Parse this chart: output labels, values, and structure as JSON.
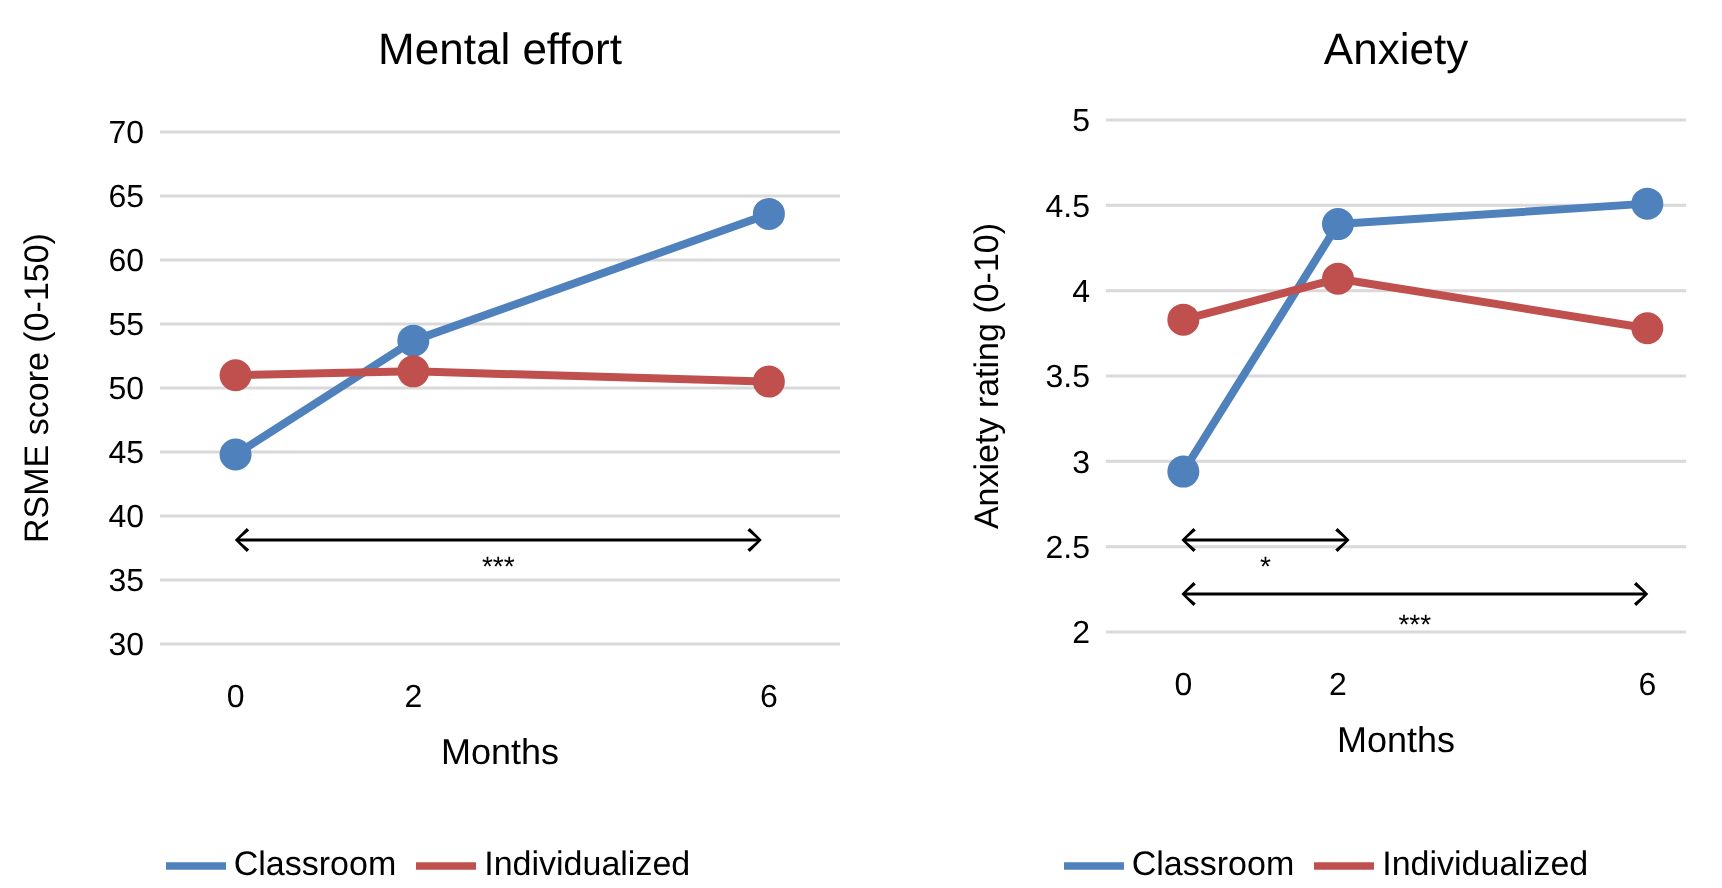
{
  "chart_data": [
    {
      "type": "line",
      "title": "Mental effort",
      "xlabel": "Months",
      "ylabel": "RSME score (0-150)",
      "x": [
        0,
        2,
        6
      ],
      "xlim": [
        -0.85,
        6.8
      ],
      "xticks": [
        0,
        2,
        6
      ],
      "ylim": [
        30,
        70
      ],
      "yticks": [
        30,
        35,
        40,
        45,
        50,
        55,
        60,
        65,
        70
      ],
      "grid": "y",
      "legend": "bottom",
      "marker": "circle",
      "line_style": "solid",
      "series": [
        {
          "name": "Classroom",
          "color": "#4f81bd",
          "values": [
            44.8,
            53.7,
            63.6
          ]
        },
        {
          "name": "Individualized",
          "color": "#c0504d",
          "values": [
            51.0,
            51.3,
            50.5
          ]
        }
      ],
      "annotations": [
        "***"
      ]
    },
    {
      "type": "line",
      "title": "Anxiety",
      "xlabel": "Months",
      "ylabel": "Anxiety rating (0-10)",
      "x": [
        0,
        2,
        6
      ],
      "xlim": [
        -1,
        6.5
      ],
      "xticks": [
        0,
        2,
        6
      ],
      "ylim": [
        2,
        5
      ],
      "yticks": [
        2,
        2.5,
        3,
        3.5,
        4,
        4.5,
        5
      ],
      "grid": "y",
      "legend": "bottom",
      "marker": "circle",
      "line_style": "solid",
      "series": [
        {
          "name": "Classroom",
          "color": "#4f81bd",
          "values": [
            2.94,
            4.39,
            4.51
          ]
        },
        {
          "name": "Individualized",
          "color": "#c0504d",
          "values": [
            3.83,
            4.07,
            3.78
          ]
        }
      ],
      "annotations": [
        "*",
        "***"
      ]
    }
  ]
}
